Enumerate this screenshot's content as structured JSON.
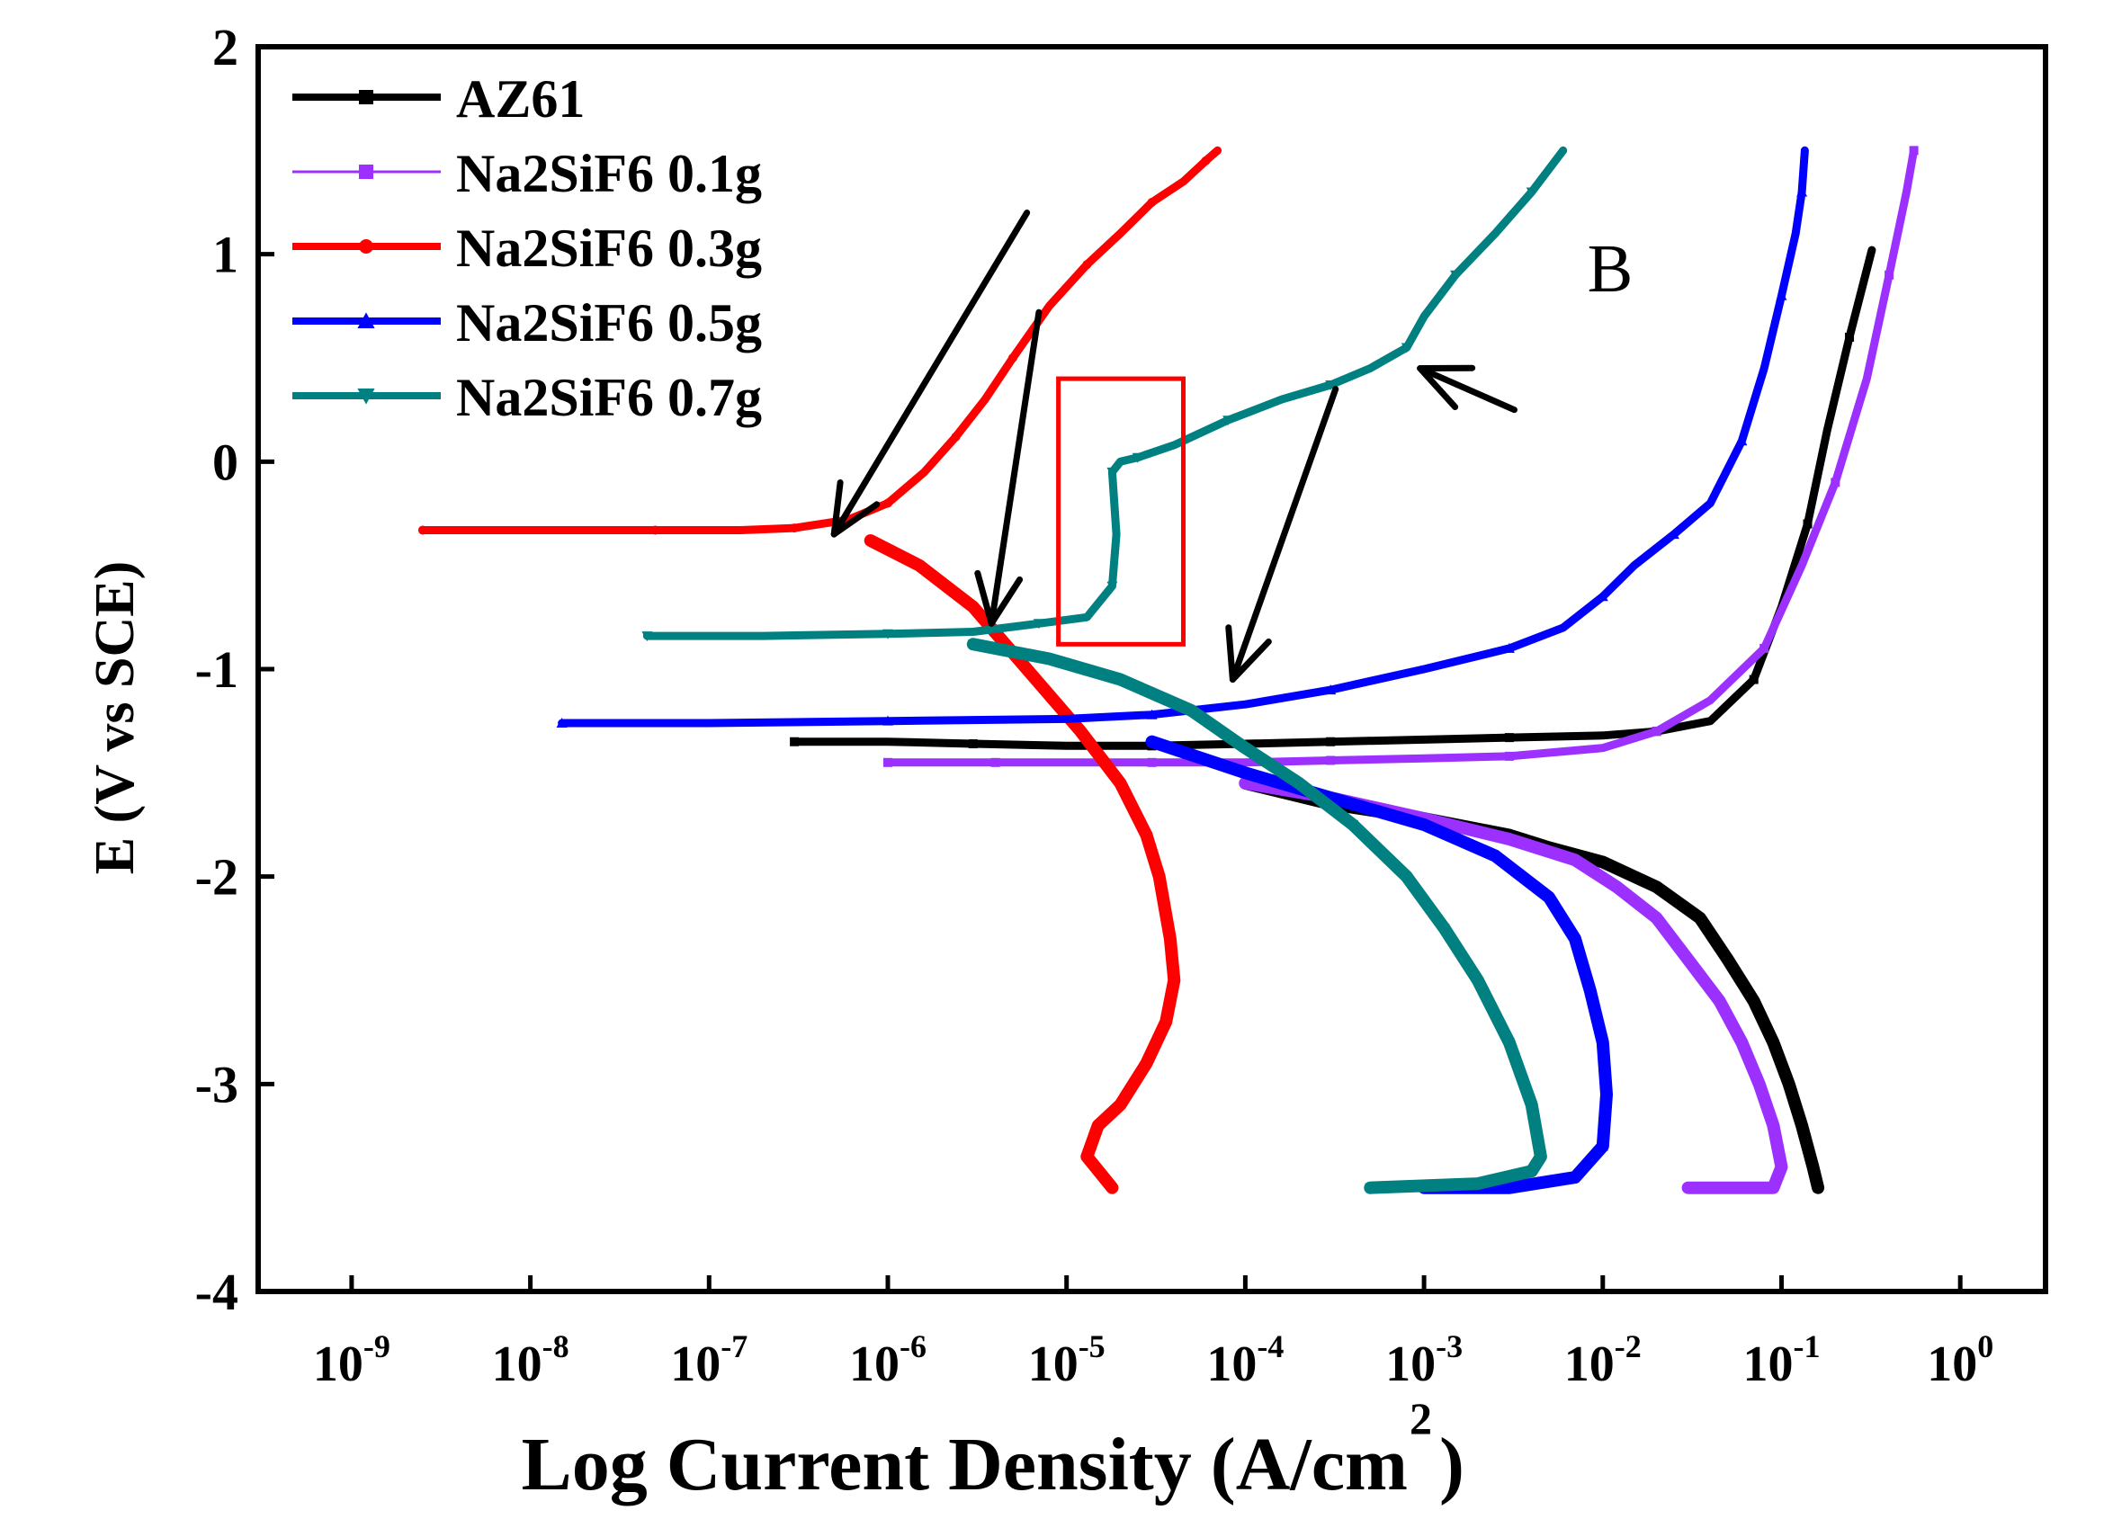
{
  "chart_data": {
    "type": "line",
    "title": "",
    "xlabel": "Log Current Density (A/cm",
    "xlabel_sup": "2",
    "xlabel_close": ")",
    "ylabel": "E (V vs SCE)",
    "xscale": "log",
    "xlim": [
      3e-10,
      3.0
    ],
    "ylim": [
      -4,
      2
    ],
    "y_ticks": [
      {
        "value": 2,
        "label": "2"
      },
      {
        "value": 1,
        "label": "1"
      },
      {
        "value": 0,
        "label": "0"
      },
      {
        "value": -1,
        "label": "-1"
      },
      {
        "value": -2,
        "label": "-2"
      },
      {
        "value": -3,
        "label": "-3"
      },
      {
        "value": -4,
        "label": "-4"
      }
    ],
    "x_ticks": [
      {
        "exp": -9,
        "base": "10",
        "sup": "-9"
      },
      {
        "exp": -8,
        "base": "10",
        "sup": "-8"
      },
      {
        "exp": -7,
        "base": "10",
        "sup": "-7"
      },
      {
        "exp": -6,
        "base": "10",
        "sup": "-6"
      },
      {
        "exp": -5,
        "base": "10",
        "sup": "-5"
      },
      {
        "exp": -4,
        "base": "10",
        "sup": "-4"
      },
      {
        "exp": -3,
        "base": "10",
        "sup": "-3"
      },
      {
        "exp": -2,
        "base": "10",
        "sup": "-2"
      },
      {
        "exp": -1,
        "base": "10",
        "sup": "-1"
      },
      {
        "exp": 0,
        "base": "10",
        "sup": "0"
      }
    ],
    "legend_position": "top-left",
    "series": [
      {
        "name": "AZ61",
        "color": "#000000",
        "marker": "square",
        "x": [
          3e-07,
          1e-06,
          3e-06,
          1e-05,
          3e-05,
          0.0001,
          0.0003,
          0.001,
          0.003,
          0.01,
          0.02,
          0.04,
          0.07,
          0.1,
          0.14,
          0.18,
          0.24,
          0.32,
          0.0001,
          0.0003,
          0.001,
          0.003,
          0.005,
          0.01,
          0.02,
          0.035,
          0.05,
          0.07,
          0.09,
          0.11,
          0.13,
          0.15,
          0.16
        ],
        "y": [
          -1.35,
          -1.35,
          -1.36,
          -1.37,
          -1.37,
          -1.36,
          -1.35,
          -1.34,
          -1.33,
          -1.32,
          -1.3,
          -1.25,
          -1.05,
          -0.7,
          -0.3,
          0.15,
          0.6,
          1.02,
          -1.55,
          -1.65,
          -1.72,
          -1.8,
          -1.86,
          -1.93,
          -2.05,
          -2.2,
          -2.4,
          -2.6,
          -2.8,
          -3.0,
          -3.2,
          -3.4,
          -3.5
        ]
      },
      {
        "name": "Na2SiF6 0.1g",
        "color": "#9b30ff",
        "marker": "square",
        "x": [
          1e-06,
          2e-06,
          4e-06,
          1e-05,
          3e-05,
          0.0001,
          0.0003,
          0.001,
          0.003,
          0.01,
          0.02,
          0.04,
          0.08,
          0.13,
          0.2,
          0.3,
          0.4,
          0.5,
          0.55,
          0.0001,
          0.0003,
          0.001,
          0.003,
          0.007,
          0.012,
          0.02,
          0.03,
          0.045,
          0.06,
          0.075,
          0.09,
          0.1,
          0.09,
          0.06,
          0.03
        ],
        "y": [
          -1.45,
          -1.45,
          -1.45,
          -1.45,
          -1.45,
          -1.45,
          -1.44,
          -1.43,
          -1.42,
          -1.38,
          -1.3,
          -1.15,
          -0.9,
          -0.5,
          -0.1,
          0.4,
          0.9,
          1.3,
          1.5,
          -1.55,
          -1.62,
          -1.72,
          -1.82,
          -1.92,
          -2.05,
          -2.2,
          -2.4,
          -2.6,
          -2.8,
          -3.0,
          -3.2,
          -3.4,
          -3.5,
          -3.5,
          -3.5
        ]
      },
      {
        "name": "Na2SiF6 0.3g",
        "color": "#ff0000",
        "marker": "circle",
        "x": [
          2.5e-09,
          1e-08,
          5e-08,
          1.5e-07,
          3e-07,
          6e-07,
          1e-06,
          1.6e-06,
          2.4e-06,
          3.5e-06,
          5e-06,
          8e-06,
          1.3e-05,
          2e-05,
          3e-05,
          4.5e-05,
          6e-05,
          7e-05,
          8e-07,
          1.5e-06,
          3e-06,
          6e-06,
          1.2e-05,
          2e-05,
          2.8e-05,
          3.3e-05,
          3.8e-05,
          4e-05,
          3.6e-05,
          2.8e-05,
          2e-05,
          1.5e-05,
          1.3e-05,
          1.8e-05
        ],
        "y": [
          -0.33,
          -0.33,
          -0.33,
          -0.33,
          -0.32,
          -0.28,
          -0.2,
          -0.05,
          0.12,
          0.3,
          0.5,
          0.75,
          0.95,
          1.1,
          1.25,
          1.35,
          1.45,
          1.5,
          -0.38,
          -0.5,
          -0.7,
          -1.0,
          -1.3,
          -1.55,
          -1.8,
          -2.0,
          -2.3,
          -2.5,
          -2.7,
          -2.9,
          -3.1,
          -3.2,
          -3.35,
          -3.5
        ]
      },
      {
        "name": "Na2SiF6 0.5g",
        "color": "#0000ff",
        "marker": "triangle-up",
        "x": [
          1.5e-08,
          1e-07,
          1e-06,
          1e-05,
          3e-05,
          0.0001,
          0.0003,
          0.001,
          0.003,
          0.006,
          0.01,
          0.015,
          0.025,
          0.04,
          0.06,
          0.08,
          0.1,
          0.12,
          0.13,
          0.135,
          3e-05,
          0.0001,
          0.0003,
          0.001,
          0.0025,
          0.005,
          0.007,
          0.0085,
          0.01,
          0.0105,
          0.01,
          0.007,
          0.003,
          0.001
        ],
        "y": [
          -1.26,
          -1.26,
          -1.25,
          -1.24,
          -1.22,
          -1.17,
          -1.1,
          -1.0,
          -0.9,
          -0.8,
          -0.65,
          -0.5,
          -0.35,
          -0.2,
          0.1,
          0.45,
          0.8,
          1.1,
          1.3,
          1.5,
          -1.35,
          -1.5,
          -1.62,
          -1.75,
          -1.9,
          -2.1,
          -2.3,
          -2.55,
          -2.8,
          -3.05,
          -3.3,
          -3.45,
          -3.5,
          -3.5
        ],
        "label_callout": "B"
      },
      {
        "name": "Na2SiF6 0.7g",
        "color": "#008080",
        "marker": "triangle-down",
        "x": [
          4.5e-08,
          2e-07,
          1e-06,
          3e-06,
          7e-06,
          1.3e-05,
          1.8e-05,
          1.9e-05,
          1.8e-05,
          2e-05,
          2.5e-05,
          4e-05,
          8e-05,
          0.00016,
          0.0003,
          0.0005,
          0.0008,
          0.001,
          0.0015,
          0.0025,
          0.004,
          0.006,
          3e-06,
          8e-06,
          2e-05,
          5e-05,
          0.0001,
          0.0002,
          0.0004,
          0.0008,
          0.0013,
          0.002,
          0.003,
          0.004,
          0.0045,
          0.004,
          0.002,
          0.0005
        ],
        "y": [
          -0.84,
          -0.84,
          -0.83,
          -0.82,
          -0.78,
          -0.75,
          -0.6,
          -0.35,
          -0.05,
          0.0,
          0.02,
          0.08,
          0.2,
          0.3,
          0.37,
          0.45,
          0.55,
          0.7,
          0.9,
          1.1,
          1.3,
          1.5,
          -0.88,
          -0.95,
          -1.05,
          -1.2,
          -1.38,
          -1.55,
          -1.75,
          -2.0,
          -2.25,
          -2.5,
          -2.8,
          -3.1,
          -3.35,
          -3.42,
          -3.48,
          -3.5
        ]
      }
    ],
    "annotations": [
      {
        "type": "text",
        "text": "B",
        "x": 0.011,
        "y": 0.82
      },
      {
        "type": "arrow",
        "from": [
          0.0032,
          0.25
        ],
        "to": [
          0.00095,
          0.45
        ]
      },
      {
        "type": "arrow",
        "from": [
          6e-06,
          1.2
        ],
        "to": [
          5e-07,
          -0.35
        ]
      },
      {
        "type": "arrow",
        "from": [
          7e-06,
          0.72
        ],
        "to": [
          3.8e-06,
          -0.78
        ]
      },
      {
        "type": "arrow",
        "from": [
          0.00032,
          0.35
        ],
        "to": [
          8.5e-05,
          -1.05
        ]
      },
      {
        "type": "box",
        "color": "#ff0000",
        "x0": 9e-06,
        "x1": 4.5e-05,
        "y0": -0.88,
        "y1": 0.4
      }
    ]
  }
}
